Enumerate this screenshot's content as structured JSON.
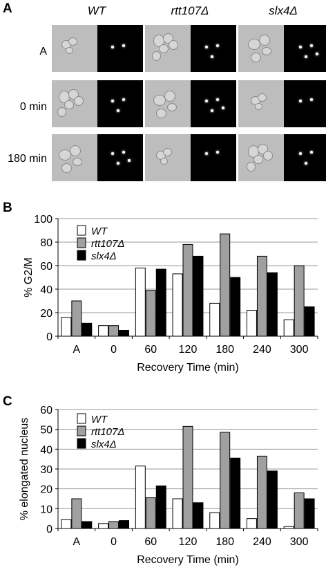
{
  "panel_a": {
    "letter": "A",
    "genotypes": [
      "WT",
      "rtt107Δ",
      "slx4Δ"
    ],
    "rows": [
      "A",
      "0 min",
      "180 min"
    ]
  },
  "chart_data": [
    {
      "panel": "B",
      "type": "bar",
      "categories": [
        "A",
        "0",
        "60",
        "120",
        "180",
        "240",
        "300"
      ],
      "series": [
        {
          "name": "WT",
          "color": "#ffffff",
          "values": [
            16,
            9,
            58,
            53,
            28,
            22,
            14
          ]
        },
        {
          "name": "rtt107Δ",
          "color": "#a0a0a0",
          "values": [
            30,
            9,
            39,
            78,
            87,
            68,
            60
          ]
        },
        {
          "name": "slx4Δ",
          "color": "#000000",
          "values": [
            11,
            5,
            57,
            68,
            50,
            54,
            25
          ]
        }
      ],
      "xlabel": "Recovery Time (min)",
      "ylabel": "% G2/M",
      "ylim": [
        0,
        100
      ],
      "yticks": [
        0,
        20,
        40,
        60,
        80,
        100
      ],
      "grid": true,
      "legend": "top-left"
    },
    {
      "panel": "C",
      "type": "bar",
      "categories": [
        "A",
        "0",
        "60",
        "120",
        "180",
        "240",
        "300"
      ],
      "series": [
        {
          "name": "WT",
          "color": "#ffffff",
          "values": [
            4.5,
            2.5,
            31.5,
            15,
            8,
            5,
            1
          ]
        },
        {
          "name": "rtt107Δ",
          "color": "#a0a0a0",
          "values": [
            15,
            3.5,
            15.5,
            51.5,
            48.5,
            36.5,
            18
          ]
        },
        {
          "name": "slx4Δ",
          "color": "#000000",
          "values": [
            3.5,
            4,
            21.5,
            13,
            35.5,
            29,
            15
          ]
        }
      ],
      "xlabel": "Recovery Time (min)",
      "ylabel": "% elongated nucleus",
      "ylim": [
        0,
        60
      ],
      "yticks": [
        0,
        10,
        20,
        30,
        40,
        50,
        60
      ],
      "grid": true,
      "legend": "top-left"
    }
  ]
}
